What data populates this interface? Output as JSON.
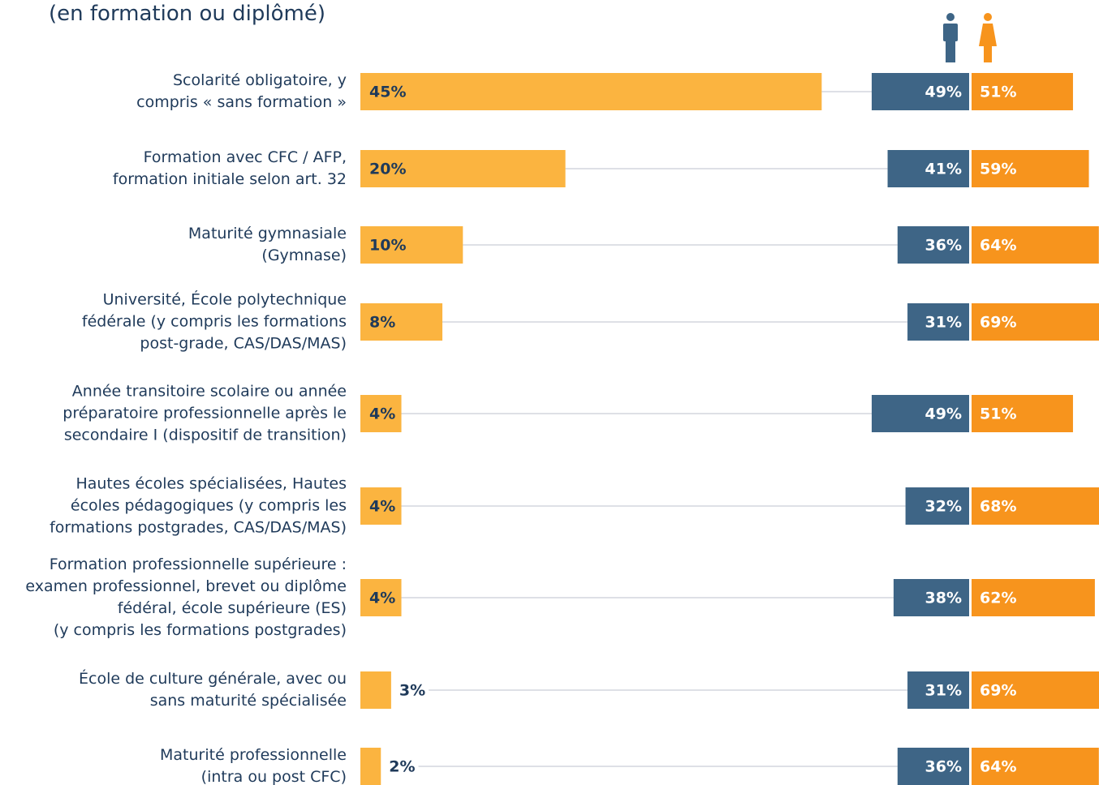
{
  "chart_data": {
    "type": "bar",
    "subtitle": "(en formation ou diplômé)",
    "categories": [
      "Scolarité obligatoire, y\ncompris « sans formation »",
      "Formation avec CFC / AFP,\nformation initiale selon art. 32",
      "Maturité gymnasiale\n(Gymnase)",
      "Université, École polytechnique\nfédérale (y compris les formations\npost-grade, CAS/DAS/MAS)",
      "Année transitoire scolaire ou année\npréparatoire professionnelle après le\nsecondaire I (dispositif de transition)",
      "Hautes écoles spécialisées, Hautes\nécoles pédagogiques (y compris les\nformations postgrades, CAS/DAS/MAS)",
      "Formation professionnelle supérieure :\nexamen professionnel, brevet ou diplôme\nfédéral, école supérieure (ES)\n(y compris les formations postgrades)",
      "École de culture générale, avec ou\nsans maturité spécialisée",
      "Maturité professionnelle\n(intra ou post CFC)"
    ],
    "series": [
      {
        "color": "#fbb440",
        "values": [
          45,
          20,
          10,
          8,
          4,
          4,
          4,
          3,
          2
        ],
        "value_labels": [
          "45%",
          "20%",
          "10%",
          "8%",
          "4%",
          "4%",
          "4%",
          "3%",
          "2%"
        ]
      },
      {
        "color": "#3e6586",
        "values": [
          49,
          41,
          36,
          31,
          49,
          32,
          38,
          31,
          36
        ],
        "value_labels": [
          "49%",
          "41%",
          "36%",
          "31%",
          "49%",
          "32%",
          "38%",
          "31%",
          "36%"
        ]
      },
      {
        "color": "#f7941d",
        "values": [
          51,
          59,
          64,
          69,
          51,
          68,
          62,
          69,
          64
        ],
        "value_labels": [
          "51%",
          "59%",
          "64%",
          "69%",
          "51%",
          "68%",
          "62%",
          "69%",
          "64%"
        ]
      }
    ]
  }
}
